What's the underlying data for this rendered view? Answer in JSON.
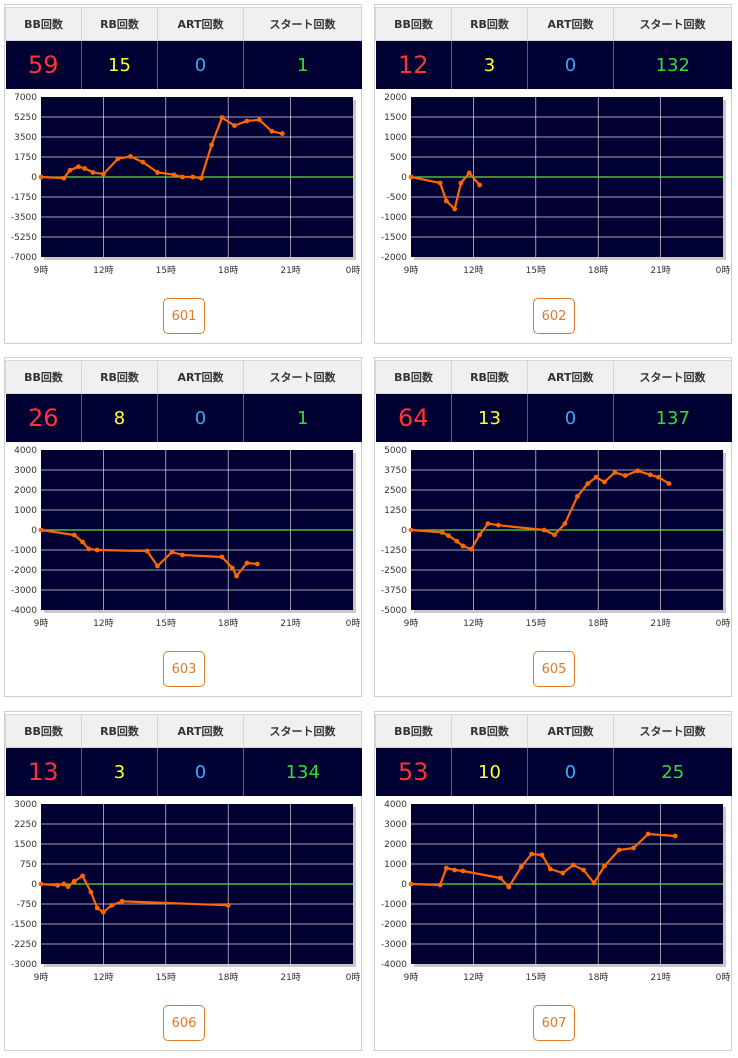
{
  "headers": {
    "bb": "BB回数",
    "rb": "RB回数",
    "art": "ART回数",
    "start": "スタート回数"
  },
  "colors": {
    "bb": "#ff3333",
    "rb": "#ffff33",
    "art": "#33aaff",
    "start": "#33dd33",
    "plot_bg": "#000033",
    "line": "#ff6600",
    "zero_line": "#66dd33"
  },
  "x_ticks": [
    "9時",
    "12時",
    "15時",
    "18時",
    "21時",
    "0時"
  ],
  "machines": [
    {
      "id": "601",
      "bb": "59",
      "rb": "15",
      "art": "0",
      "start": "1",
      "chart_data": {
        "type": "line",
        "ylim": [
          -7000,
          7000
        ],
        "yticks": [
          "7000",
          "5250",
          "3500",
          "1750",
          "0",
          "-1750",
          "-3500",
          "-5250",
          "-7000"
        ],
        "x": [
          9,
          10.1,
          10.4,
          10.8,
          11.1,
          11.5,
          12.0,
          12.7,
          13.3,
          13.9,
          14.6,
          15.4,
          15.8,
          16.3,
          16.7,
          17.2,
          17.7,
          18.3,
          18.9,
          19.5,
          20.1,
          20.6
        ],
        "y": [
          0,
          -100,
          600,
          900,
          750,
          400,
          250,
          1600,
          1800,
          1300,
          400,
          200,
          0,
          0,
          -100,
          2800,
          5200,
          4500,
          4900,
          5000,
          4000,
          3800
        ]
      }
    },
    {
      "id": "602",
      "bb": "12",
      "rb": "3",
      "art": "0",
      "start": "132",
      "chart_data": {
        "type": "line",
        "ylim": [
          -2000,
          2000
        ],
        "yticks": [
          "2000",
          "1500",
          "1000",
          "500",
          "0",
          "-500",
          "-1000",
          "-1500",
          "-2000"
        ],
        "x": [
          9,
          10.4,
          10.7,
          11.1,
          11.4,
          11.8,
          12.3
        ],
        "y": [
          0,
          -150,
          -600,
          -800,
          -150,
          100,
          -200
        ]
      }
    },
    {
      "id": "603",
      "bb": "26",
      "rb": "8",
      "art": "0",
      "start": "1",
      "chart_data": {
        "type": "line",
        "ylim": [
          -4000,
          4000
        ],
        "yticks": [
          "4000",
          "3000",
          "2000",
          "1000",
          "0",
          "-1000",
          "-2000",
          "-3000",
          "-4000"
        ],
        "x": [
          9,
          10.6,
          11.0,
          11.3,
          11.7,
          14.1,
          14.6,
          15.3,
          15.8,
          17.7,
          18.2,
          18.4,
          18.9,
          19.4
        ],
        "y": [
          0,
          -250,
          -600,
          -950,
          -1000,
          -1050,
          -1800,
          -1100,
          -1250,
          -1350,
          -1900,
          -2300,
          -1650,
          -1700
        ]
      }
    },
    {
      "id": "605",
      "bb": "64",
      "rb": "13",
      "art": "0",
      "start": "137",
      "chart_data": {
        "type": "line",
        "ylim": [
          -5000,
          5000
        ],
        "yticks": [
          "5000",
          "3750",
          "2500",
          "1250",
          "0",
          "-1250",
          "-2500",
          "-3750",
          "-5000"
        ],
        "x": [
          9,
          10.5,
          10.8,
          11.2,
          11.5,
          11.9,
          12.3,
          12.7,
          13.2,
          15.4,
          15.9,
          16.4,
          17.0,
          17.5,
          17.9,
          18.3,
          18.8,
          19.3,
          19.9,
          20.5,
          20.9,
          21.4
        ],
        "y": [
          0,
          -150,
          -350,
          -700,
          -1000,
          -1200,
          -300,
          400,
          300,
          0,
          -300,
          400,
          2100,
          2900,
          3300,
          3000,
          3600,
          3400,
          3700,
          3450,
          3300,
          2900
        ]
      }
    },
    {
      "id": "606",
      "bb": "13",
      "rb": "3",
      "art": "0",
      "start": "134",
      "chart_data": {
        "type": "line",
        "ylim": [
          -3000,
          3000
        ],
        "yticks": [
          "3000",
          "2250",
          "1500",
          "750",
          "0",
          "-750",
          "-1500",
          "-2250",
          "-3000"
        ],
        "x": [
          9,
          9.8,
          10.1,
          10.3,
          10.6,
          11.0,
          11.4,
          11.7,
          12.0,
          12.4,
          12.9,
          18.0
        ],
        "y": [
          0,
          -50,
          0,
          -100,
          100,
          300,
          -300,
          -900,
          -1050,
          -800,
          -650,
          -800
        ]
      }
    },
    {
      "id": "607",
      "bb": "53",
      "rb": "10",
      "art": "0",
      "start": "25",
      "chart_data": {
        "type": "line",
        "ylim": [
          -4000,
          4000
        ],
        "yticks": [
          "4000",
          "3000",
          "2000",
          "1000",
          "0",
          "-1000",
          "-2000",
          "-3000",
          "-4000"
        ],
        "x": [
          9,
          10.4,
          10.7,
          11.1,
          11.5,
          13.3,
          13.7,
          14.3,
          14.8,
          15.3,
          15.7,
          16.3,
          16.8,
          17.3,
          17.8,
          18.3,
          19.0,
          19.7,
          20.4,
          21.7
        ],
        "y": [
          0,
          -50,
          800,
          700,
          650,
          300,
          -150,
          850,
          1500,
          1450,
          750,
          550,
          950,
          700,
          50,
          900,
          1700,
          1800,
          2500,
          2400
        ]
      }
    }
  ]
}
